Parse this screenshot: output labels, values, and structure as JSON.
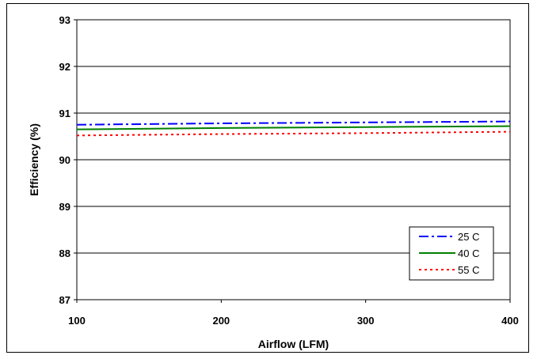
{
  "chart_data": {
    "type": "line",
    "title": "",
    "xlabel": "Airflow (LFM)",
    "ylabel": "Efficiency (%)",
    "xlim": [
      100,
      400
    ],
    "ylim": [
      87,
      93
    ],
    "x_ticks": [
      100,
      200,
      300,
      400
    ],
    "y_ticks": [
      87,
      88,
      89,
      90,
      91,
      92,
      93
    ],
    "grid": {
      "horizontal": true,
      "vertical": false
    },
    "legend_position": "bottom-right",
    "series": [
      {
        "name": "25 C",
        "color": "#0000ff",
        "dash": "dash-dot",
        "x": [
          100,
          200,
          300,
          400
        ],
        "y": [
          90.75,
          90.78,
          90.8,
          90.82
        ]
      },
      {
        "name": "40 C",
        "color": "#008000",
        "dash": "solid",
        "x": [
          100,
          200,
          300,
          400
        ],
        "y": [
          90.65,
          90.68,
          90.7,
          90.72
        ]
      },
      {
        "name": "55 C",
        "color": "#ff0000",
        "dash": "dotted",
        "x": [
          100,
          200,
          300,
          400
        ],
        "y": [
          90.52,
          90.55,
          90.57,
          90.6
        ]
      }
    ]
  }
}
